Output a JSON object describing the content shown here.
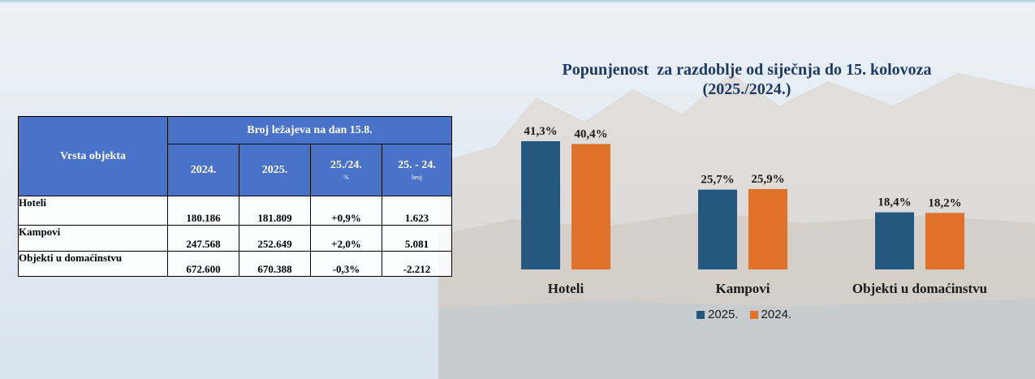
{
  "table": {
    "header_col": "Vrsta objekta",
    "header_group": "Broj ležajeva na dan 15.8.",
    "columns": [
      {
        "label": "2024.",
        "sub": ""
      },
      {
        "label": "2025.",
        "sub": ""
      },
      {
        "label": "25./24.",
        "sub": "%"
      },
      {
        "label": "25. - 24.",
        "sub": "broj"
      }
    ],
    "rows": [
      {
        "name": "Hoteli",
        "values": [
          "180.186",
          "181.809",
          "+0,9%",
          "1.623"
        ]
      },
      {
        "name": "Kampovi",
        "values": [
          "247.568",
          "252.649",
          "+2,0%",
          "5.081"
        ]
      },
      {
        "name": "Objekti u domaćinstvu",
        "values": [
          "672.600",
          "670.388",
          "-0,3%",
          "-2.212"
        ]
      }
    ]
  },
  "chart_data": {
    "type": "bar",
    "title": "Popunjenost  za razdoblje od siječnja do 15. kolovoza",
    "subtitle": "(2025./2024.)",
    "categories": [
      "Hoteli",
      "Kampovi",
      "Objekti u domaćinstvu"
    ],
    "series": [
      {
        "name": "2025.",
        "color": "#25587f",
        "values": [
          41.3,
          25.7,
          18.4
        ],
        "labels": [
          "41,3%",
          "25,7%",
          "18,4%"
        ]
      },
      {
        "name": "2024.",
        "color": "#e07128",
        "values": [
          40.4,
          25.9,
          18.2
        ],
        "labels": [
          "40,4%",
          "25,9%",
          "18,2%"
        ]
      }
    ],
    "ylim": [
      0,
      50
    ],
    "grid": false,
    "legend_position": "bottom"
  }
}
